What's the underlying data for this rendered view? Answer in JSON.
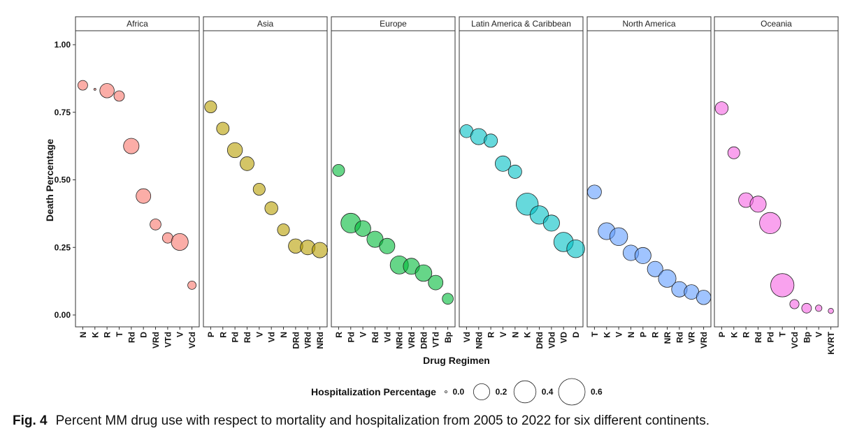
{
  "chart_data": {
    "type": "scatter",
    "xlabel": "Drug Regimen",
    "ylabel": "Death Percentage",
    "ylim": [
      -0.05,
      1.06
    ],
    "yticks": [
      "0.00",
      "0.25",
      "0.50",
      "0.75",
      "1.00"
    ],
    "grid": false,
    "legend": {
      "title": "Hospitalization Percentage",
      "placement": "bottom",
      "sizes": [
        0.0,
        0.2,
        0.4,
        0.6
      ],
      "labels": [
        "0.0",
        "0.2",
        "0.4",
        "0.6"
      ]
    },
    "facets": [
      {
        "name": "Africa",
        "color": "#F8766D",
        "categories": [
          "N",
          "K",
          "R",
          "T",
          "Rd",
          "D",
          "VRd",
          "VTd",
          "V",
          "VCd"
        ],
        "death": [
          0.85,
          0.835,
          0.83,
          0.81,
          0.625,
          0.44,
          0.335,
          0.285,
          0.27,
          0.11
        ],
        "hospitalization": [
          0.06,
          0.0,
          0.15,
          0.07,
          0.18,
          0.16,
          0.08,
          0.07,
          0.22,
          0.04
        ]
      },
      {
        "name": "Asia",
        "color": "#B79F00",
        "categories": [
          "P",
          "R",
          "Pd",
          "Rd",
          "V",
          "Vd",
          "N",
          "DRd",
          "VRd",
          "NRd"
        ],
        "death": [
          0.77,
          0.69,
          0.61,
          0.56,
          0.465,
          0.395,
          0.315,
          0.255,
          0.25,
          0.24
        ],
        "hospitalization": [
          0.1,
          0.11,
          0.17,
          0.14,
          0.1,
          0.12,
          0.1,
          0.15,
          0.16,
          0.18
        ]
      },
      {
        "name": "Europe",
        "color": "#00BA38",
        "categories": [
          "R",
          "Pd",
          "V",
          "Rd",
          "Vd",
          "NRd",
          "VRd",
          "DRd",
          "VTd",
          "Bp"
        ],
        "death": [
          0.535,
          0.34,
          0.32,
          0.28,
          0.255,
          0.185,
          0.18,
          0.155,
          0.12,
          0.06
        ],
        "hospitalization": [
          0.1,
          0.31,
          0.19,
          0.2,
          0.18,
          0.26,
          0.2,
          0.21,
          0.16,
          0.08
        ]
      },
      {
        "name": "Latin America & Caribbean",
        "color": "#00BFC4",
        "categories": [
          "Vd",
          "NRd",
          "R",
          "V",
          "N",
          "K",
          "DRd",
          "VDd",
          "VD",
          "D"
        ],
        "death": [
          0.68,
          0.66,
          0.645,
          0.56,
          0.53,
          0.41,
          0.37,
          0.34,
          0.27,
          0.245
        ],
        "hospitalization": [
          0.12,
          0.2,
          0.13,
          0.18,
          0.13,
          0.4,
          0.27,
          0.2,
          0.3,
          0.25
        ]
      },
      {
        "name": "North America",
        "color": "#619CFF",
        "categories": [
          "T",
          "K",
          "V",
          "N",
          "P",
          "R",
          "NR",
          "Rd",
          "VR",
          "VRd"
        ],
        "death": [
          0.455,
          0.31,
          0.29,
          0.23,
          0.22,
          0.17,
          0.135,
          0.095,
          0.085,
          0.065
        ],
        "hospitalization": [
          0.14,
          0.22,
          0.25,
          0.18,
          0.2,
          0.18,
          0.24,
          0.18,
          0.16,
          0.15
        ]
      },
      {
        "name": "Oceania",
        "color": "#F564E3",
        "categories": [
          "P",
          "K",
          "R",
          "Rd",
          "Pd",
          "T",
          "VCd",
          "Bp",
          "V",
          "KVRT"
        ],
        "death": [
          0.765,
          0.6,
          0.425,
          0.41,
          0.34,
          0.11,
          0.04,
          0.025,
          0.025,
          0.015
        ],
        "hospitalization": [
          0.12,
          0.1,
          0.16,
          0.2,
          0.37,
          0.45,
          0.05,
          0.06,
          0.02,
          0.01
        ]
      }
    ]
  },
  "caption": {
    "label": "Fig. 4",
    "text": "Percent MM drug use with respect to mortality and hospitalization from 2005 to 2022 for six different continents."
  }
}
